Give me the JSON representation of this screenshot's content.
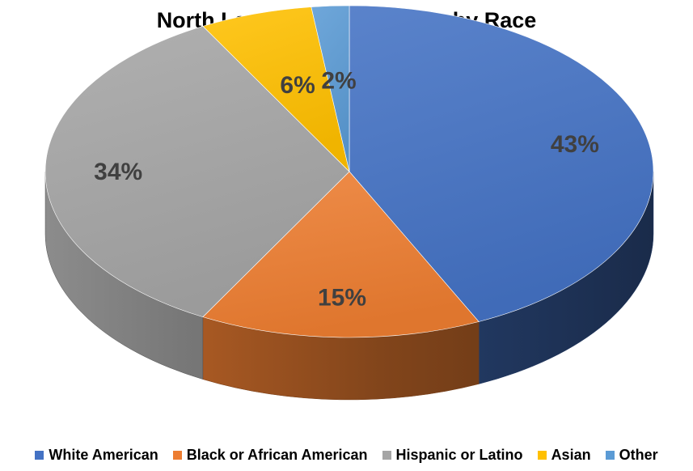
{
  "chart_data": {
    "type": "pie",
    "style": "3d",
    "title": "North Las Vegas Population by Race",
    "legend_position": "bottom",
    "slices": [
      {
        "name": "White American",
        "value": 43,
        "label": "43%",
        "color": "#4472C4"
      },
      {
        "name": "Black or African American",
        "value": 15,
        "label": "15%",
        "color": "#ED7D31"
      },
      {
        "name": "Hispanic or Latino",
        "value": 34,
        "label": "34%",
        "color": "#A5A5A5"
      },
      {
        "name": "Asian",
        "value": 6,
        "label": "6%",
        "color": "#FFC000"
      },
      {
        "name": "Other",
        "value": 2,
        "label": "2%",
        "color": "#5B9BD5"
      }
    ]
  }
}
